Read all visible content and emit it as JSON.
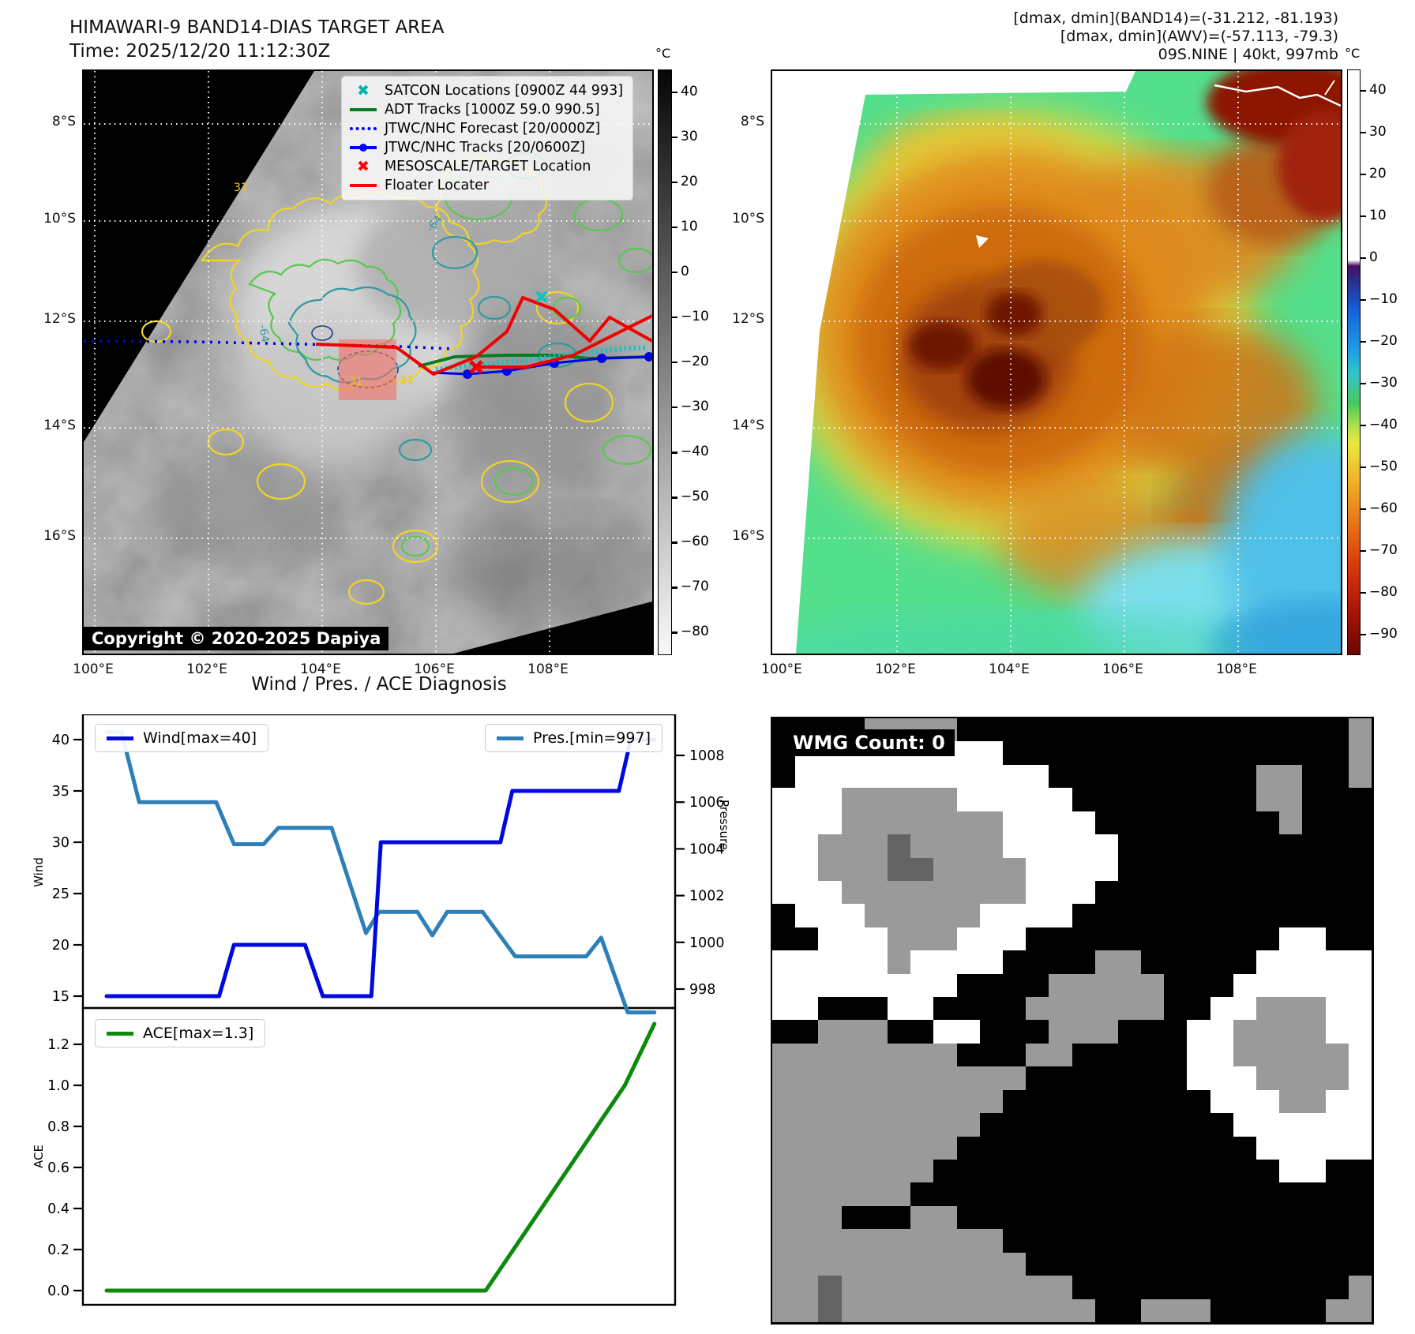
{
  "header": {
    "title": "HIMAWARI-9 BAND14-DIAS TARGET AREA",
    "time_label": "Time: 2025/12/20 11:12:30Z",
    "info_lines": [
      "[dmax, dmin](BAND14)=(-31.212, -81.193)",
      "[dmax, dmin](AWV)=(-57.113, -79.3)",
      "09S.NINE | 40kt, 997mb"
    ]
  },
  "band14_map": {
    "copyright": "Copyright © 2020-2025 Dapiya",
    "lat_ticks": [
      "8°S",
      "10°S",
      "12°S",
      "14°S",
      "16°S"
    ],
    "lon_ticks": [
      "100°E",
      "102°E",
      "104°E",
      "106°E",
      "108°E"
    ],
    "colorbar": {
      "unit": "°C",
      "ticks": [
        40,
        30,
        20,
        10,
        0,
        -10,
        -20,
        -30,
        -40,
        -50,
        -60,
        -70,
        -80
      ]
    },
    "legend": {
      "items": [
        {
          "label": "SATCON Locations [0900Z 44 993]",
          "marker": "xmark",
          "color": "#00b2b2"
        },
        {
          "label": "ADT Tracks [1000Z 59.0 990.5]",
          "marker": "line",
          "color": "#077d1f"
        },
        {
          "label": "JTWC/NHC Forecast [20/0000Z]",
          "marker": "dotline",
          "color": "#0000ff"
        },
        {
          "label": "JTWC/NHC Tracks [20/0600Z]",
          "marker": "linedot",
          "color": "#0000ff"
        },
        {
          "label": "MESOSCALE/TARGET Location",
          "marker": "xmark",
          "color": "#ff0000"
        },
        {
          "label": "Floater Locater",
          "marker": "line",
          "color": "#ff0000"
        }
      ]
    },
    "contour_labels": {
      "inner": "-64",
      "outer": "31"
    }
  },
  "awv_map": {
    "lat_ticks": [
      "8°S",
      "10°S",
      "12°S",
      "14°S",
      "16°S"
    ],
    "lon_ticks": [
      "100°E",
      "102°E",
      "104°E",
      "106°E",
      "108°E"
    ],
    "colorbar": {
      "unit": "°C",
      "ticks": [
        40,
        30,
        20,
        10,
        0,
        -10,
        -20,
        -30,
        -40,
        -50,
        -60,
        -70,
        -80,
        -90
      ]
    }
  },
  "diagnosis_title": "Wind / Pres. / ACE Diagnosis",
  "chart_data": [
    {
      "type": "line",
      "title": "Wind / Pres. / ACE Diagnosis (upper panel)",
      "ylabel_left": "Wind",
      "ylabel_right": "Pressure",
      "yticks_left": [
        15,
        20,
        25,
        30,
        35,
        40
      ],
      "yticks_right": [
        998,
        1000,
        1002,
        1004,
        1006,
        1008
      ],
      "ylim_left": [
        13.8,
        42.5
      ],
      "ylim_right": [
        997.2,
        1009.8
      ],
      "grid": false,
      "legend_position": "upper-left / upper-right",
      "series": [
        {
          "name": "Wind[max=40]",
          "color": "#0009dd",
          "axis": "left",
          "points": [
            [
              0.04,
              15
            ],
            [
              0.23,
              15
            ],
            [
              0.255,
              20
            ],
            [
              0.375,
              20
            ],
            [
              0.405,
              15
            ],
            [
              0.487,
              15
            ],
            [
              0.503,
              30
            ],
            [
              0.705,
              30
            ],
            [
              0.725,
              35
            ],
            [
              0.905,
              35
            ],
            [
              0.925,
              40
            ],
            [
              0.965,
              40
            ]
          ]
        },
        {
          "name": "Pres.[min=997]",
          "color": "#2d7fb8",
          "axis": "right",
          "points": [
            [
              0.04,
              1009
            ],
            [
              0.065,
              1009
            ],
            [
              0.095,
              1006
            ],
            [
              0.225,
              1006
            ],
            [
              0.255,
              1004.2
            ],
            [
              0.305,
              1004.2
            ],
            [
              0.33,
              1004.9
            ],
            [
              0.42,
              1004.9
            ],
            [
              0.478,
              1000.4
            ],
            [
              0.5,
              1001.3
            ],
            [
              0.565,
              1001.3
            ],
            [
              0.59,
              1000.3
            ],
            [
              0.615,
              1001.3
            ],
            [
              0.675,
              1001.3
            ],
            [
              0.73,
              999.4
            ],
            [
              0.85,
              999.4
            ],
            [
              0.875,
              1000.2
            ],
            [
              0.92,
              997
            ],
            [
              0.965,
              997
            ]
          ]
        }
      ]
    },
    {
      "type": "line",
      "title": "Wind / Pres. / ACE Diagnosis (lower panel)",
      "ylabel_left": "ACE",
      "yticks_left": [
        0.0,
        0.2,
        0.4,
        0.6,
        0.8,
        1.0,
        1.2
      ],
      "ylim_left": [
        -0.07,
        1.38
      ],
      "grid": false,
      "legend_position": "upper-left",
      "series": [
        {
          "name": "ACE[max=1.3]",
          "color": "#0b8a0b",
          "axis": "left",
          "points": [
            [
              0.04,
              0
            ],
            [
              0.68,
              0
            ],
            [
              0.915,
              1.0
            ],
            [
              0.965,
              1.3
            ]
          ]
        }
      ]
    }
  ],
  "wmg": {
    "label": "WMG Count: 0",
    "palette": {
      "k": "#000000",
      "w": "#ffffff",
      "g": "#9a9a9a",
      "d": "#646464"
    },
    "grid": [
      "kkkkggggkkkkkkkkkkkkkkkkkg",
      "kwwwwwwwwwkkkkkkkkkkkkkkkg",
      "kwwwwwwwwwwwkkkkkkkkkggkkg",
      "wwwgggggwwwwwkkkkkkkkggkkk",
      "wwwgggggggwwwwkkkkkkkkgkkk",
      "wwgggdggggwwwwwkkkkkkkkkkk",
      "wwgggddggggwwwwkkkkkkkkkkk",
      "wwwggggggggwwwkkkkkkkkkkkk",
      "kwwwgggggwwwwkkkkkkkkkkkkk",
      "kkwwwgggwwwkkkkkkkkkkkwwkk",
      "wwwwwgwwwwkkkkggkkkkkwwwww",
      "wwwwwwwwkkkkgggggkkkwwwwww",
      "wwkkkwwkkkkggggggkkwwgggww",
      "kkgggkkwwkkkgggkkkwwggggww",
      "ggggggggkkkggkkkkkwwgggggw",
      "gggggggggggkkkkkkkwwwggggw",
      "ggggggggggkkkkkkkkkwwwggww",
      "gggggggggkkkkkkkkkkkwwwwww",
      "ggggggggkkkkkkkkkkkkkwwwww",
      "gggggggkkkkkkkkkkkkkkkwwkk",
      "ggggggkkkkkkkkkkkkkkkkkkkk",
      "gggkkkggkkkkkkkkkkkkkkkkkk",
      "ggggggggggkkkkkkkkkkkkkkkk",
      "gggggggggggkkkkkkkkkkkkkkk",
      "ggdggggggggggkkkkkkkkkkkkg",
      "ggdgggggggggggkkgggkkkkkgg"
    ]
  }
}
